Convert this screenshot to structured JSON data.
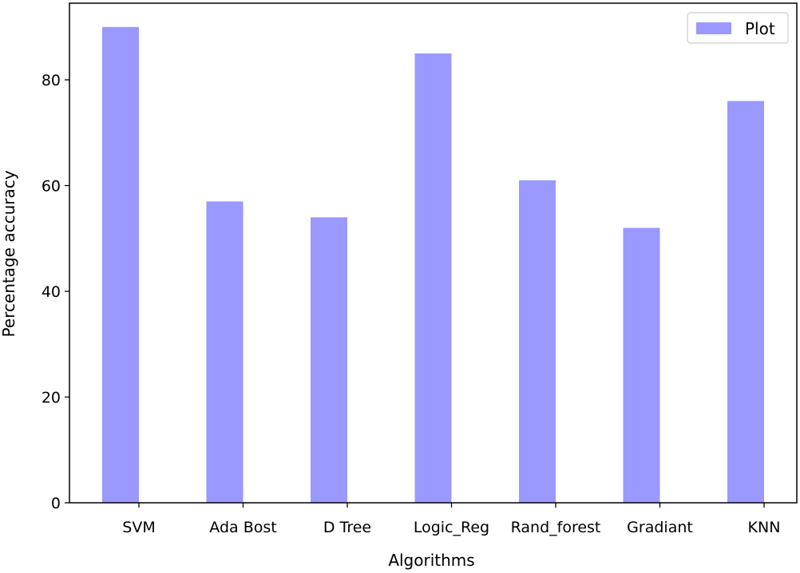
{
  "chart_data": {
    "type": "bar",
    "title": "",
    "xlabel": "Algorithms",
    "ylabel": "Percentage accuracy",
    "categories": [
      "SVM",
      "Ada Bost",
      "D Tree",
      "Logic_Reg",
      "Rand_forest",
      "Gradiant",
      "KNN"
    ],
    "series": [
      {
        "name": "Plot",
        "values": [
          90,
          57,
          54,
          85,
          61,
          52,
          76
        ],
        "color": "#9999ff"
      }
    ],
    "ylim": [
      0,
      94.5
    ],
    "yticks": [
      0,
      20,
      40,
      60,
      80
    ],
    "grid": false,
    "legend": "top-right"
  }
}
